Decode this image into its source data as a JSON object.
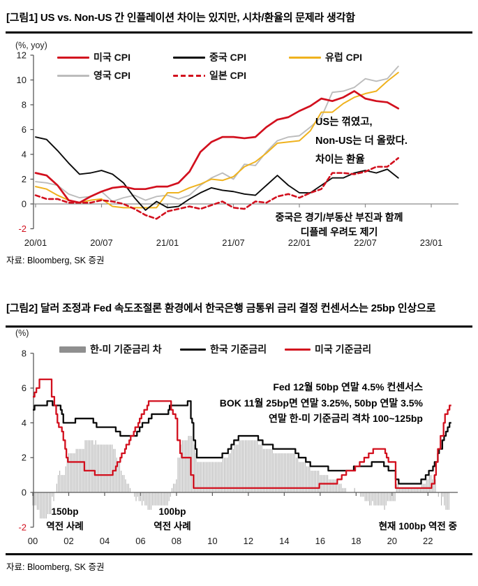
{
  "figure1": {
    "title": "[그림1] US vs. Non-US 간 인플레이션 차이는 있지만, 시차/환율의 문제라 생각함",
    "unit_label": "(%, yoy)",
    "source": "자료: Bloomberg, SK 증권"
  },
  "figure2": {
    "title": "[그림2] 달러 조정과 Fed 속도조절론 환경에서 한국은행 금통위 금리 결정 컨센서스는 25bp 인상으로",
    "unit_label": "(%)",
    "source": "자료: Bloomberg, SK 증권"
  },
  "colors": {
    "red": "#d2101e",
    "yellow": "#efb21e",
    "gray_line": "#bcbcbc",
    "black": "#0a0a0a",
    "bar_gray": "#b3b3b3",
    "legend_bar_gray": "#8f8f8f",
    "negative_tick": "#d2101e",
    "axis": "#4d4d4d",
    "zero_line": "#8c8c8c"
  },
  "chart_data": [
    {
      "type": "line",
      "unit": "%, yoy",
      "x_description": "monthly, index 0 = 2020/01, last point = 2022/10",
      "x_tick_positions": [
        0,
        6,
        12,
        18,
        24,
        30,
        36
      ],
      "x_tick_labels": [
        "20/01",
        "20/07",
        "21/01",
        "21/07",
        "22/01",
        "22/07",
        "23/01"
      ],
      "ylim": [
        -2,
        12
      ],
      "y_ticks": [
        -2,
        0,
        2,
        4,
        6,
        8,
        10,
        12
      ],
      "grid": false,
      "legend_position": "top-inside",
      "series": [
        {
          "key": "uk",
          "name": "영국 CPI",
          "color": "#bcbcbc",
          "width": 1.9,
          "values": [
            1.8,
            1.7,
            1.5,
            0.8,
            0.5,
            0.6,
            1.0,
            0.2,
            0.5,
            0.7,
            0.3,
            0.6,
            0.7,
            0.4,
            0.7,
            1.5,
            2.1,
            2.5,
            2.0,
            3.2,
            3.1,
            4.2,
            5.1,
            5.4,
            5.5,
            6.2,
            7.0,
            9.0,
            9.1,
            9.4,
            10.1,
            9.9,
            10.1,
            11.1
          ]
        },
        {
          "key": "europe",
          "name": "유럽 CPI",
          "color": "#efb21e",
          "width": 2.0,
          "values": [
            1.4,
            1.2,
            0.7,
            0.3,
            0.1,
            0.3,
            0.4,
            -0.2,
            -0.3,
            -0.3,
            -0.3,
            -0.3,
            0.9,
            0.9,
            1.3,
            1.6,
            2.0,
            1.9,
            2.2,
            3.0,
            3.4,
            4.1,
            4.9,
            5.0,
            5.1,
            5.9,
            7.4,
            7.4,
            8.1,
            8.6,
            8.9,
            9.1,
            9.9,
            10.6
          ]
        },
        {
          "key": "china",
          "name": "중국 CPI",
          "color": "#0a0a0a",
          "width": 1.9,
          "values": [
            5.4,
            5.2,
            4.3,
            3.3,
            2.4,
            2.5,
            2.7,
            2.4,
            1.7,
            0.5,
            -0.5,
            0.2,
            -0.3,
            -0.2,
            0.4,
            0.9,
            1.3,
            1.1,
            1.0,
            0.8,
            0.7,
            1.5,
            2.3,
            1.5,
            0.9,
            0.9,
            1.5,
            2.1,
            2.1,
            2.5,
            2.7,
            2.5,
            2.8,
            2.1
          ]
        },
        {
          "key": "japan",
          "name": "일본 CPI",
          "color": "#d2101e",
          "width": 2.6,
          "dash": "6,4",
          "values": [
            0.7,
            0.4,
            0.4,
            0.1,
            0.1,
            0.1,
            0.3,
            0.2,
            0.0,
            -0.4,
            -0.9,
            -1.2,
            -0.6,
            -0.4,
            -0.2,
            -0.4,
            -0.1,
            0.2,
            -0.3,
            -0.4,
            0.2,
            0.1,
            0.6,
            0.8,
            0.5,
            0.9,
            1.2,
            2.5,
            2.5,
            2.4,
            2.6,
            3.0,
            3.0,
            3.7
          ]
        },
        {
          "key": "us",
          "name": "미국 CPI",
          "color": "#d2101e",
          "width": 2.7,
          "values": [
            2.5,
            2.3,
            1.5,
            0.3,
            0.1,
            0.6,
            1.0,
            1.3,
            1.4,
            1.2,
            1.2,
            1.4,
            1.4,
            1.7,
            2.6,
            4.2,
            5.0,
            5.4,
            5.4,
            5.3,
            5.4,
            6.2,
            6.8,
            7.0,
            7.5,
            7.9,
            8.5,
            8.3,
            8.6,
            9.1,
            8.5,
            8.3,
            8.2,
            7.7
          ]
        }
      ],
      "annotations": [
        {
          "lines": [
            "US는 꺾였고,",
            "Non-US는 더 올랐다.",
            "차이는 환율"
          ]
        },
        {
          "lines": [
            "중국은 경기/부동산 부진과 함께",
            "디플레 우려도 제기"
          ]
        }
      ]
    },
    {
      "type": "bar+step-line",
      "unit": "%",
      "x_description": "years 2000 - 2023, policy rates as step lines, bars = Korea minus US monthly",
      "x_ticks": [
        2000,
        2002,
        2004,
        2006,
        2008,
        2010,
        2012,
        2014,
        2016,
        2018,
        2020,
        2022
      ],
      "x_tick_labels": [
        "00",
        "02",
        "04",
        "06",
        "08",
        "10",
        "12",
        "14",
        "16",
        "18",
        "20",
        "22"
      ],
      "x_end": 2023.3,
      "ylim": [
        -2,
        8
      ],
      "y_ticks": [
        -2,
        0,
        2,
        4,
        6,
        8
      ],
      "grid": false,
      "legend_position": "top-inside",
      "bars": {
        "name": "한-미 기준금리 차",
        "color": "#b3b3b3",
        "legend_color": "#8f8f8f",
        "legend_swatch": "bar",
        "derived": "korea_minus_us_monthly"
      },
      "series": [
        {
          "key": "korea",
          "name": "한국 기준금리",
          "color": "#0a0a0a",
          "width": 2.3,
          "step": true,
          "changes": [
            [
              2000.0,
              4.75
            ],
            [
              2000.1,
              5.0
            ],
            [
              2000.8,
              5.25
            ],
            [
              2001.1,
              5.0
            ],
            [
              2001.55,
              4.75
            ],
            [
              2001.62,
              4.5
            ],
            [
              2001.7,
              4.0
            ],
            [
              2002.37,
              4.25
            ],
            [
              2003.37,
              4.0
            ],
            [
              2003.55,
              3.75
            ],
            [
              2004.62,
              3.5
            ],
            [
              2004.87,
              3.25
            ],
            [
              2005.8,
              3.5
            ],
            [
              2005.95,
              3.75
            ],
            [
              2006.1,
              4.0
            ],
            [
              2006.45,
              4.25
            ],
            [
              2006.62,
              4.5
            ],
            [
              2007.55,
              4.75
            ],
            [
              2007.62,
              5.0
            ],
            [
              2008.62,
              5.25
            ],
            [
              2008.8,
              4.25
            ],
            [
              2008.87,
              4.0
            ],
            [
              2008.95,
              3.0
            ],
            [
              2009.05,
              2.5
            ],
            [
              2009.13,
              2.0
            ],
            [
              2010.55,
              2.25
            ],
            [
              2010.87,
              2.5
            ],
            [
              2011.05,
              2.75
            ],
            [
              2011.2,
              3.0
            ],
            [
              2011.45,
              3.25
            ],
            [
              2012.55,
              3.0
            ],
            [
              2012.8,
              2.75
            ],
            [
              2013.37,
              2.5
            ],
            [
              2014.62,
              2.25
            ],
            [
              2014.8,
              2.0
            ],
            [
              2015.2,
              1.75
            ],
            [
              2015.45,
              1.5
            ],
            [
              2016.45,
              1.25
            ],
            [
              2017.87,
              1.5
            ],
            [
              2018.87,
              1.75
            ],
            [
              2019.55,
              1.5
            ],
            [
              2019.8,
              1.25
            ],
            [
              2020.2,
              0.75
            ],
            [
              2020.37,
              0.5
            ],
            [
              2021.62,
              0.75
            ],
            [
              2021.87,
              1.0
            ],
            [
              2022.05,
              1.25
            ],
            [
              2022.28,
              1.5
            ],
            [
              2022.37,
              1.75
            ],
            [
              2022.55,
              2.25
            ],
            [
              2022.62,
              2.5
            ],
            [
              2022.8,
              3.0
            ],
            [
              2022.9,
              3.25
            ],
            [
              2023.0,
              3.5
            ],
            [
              2023.1,
              3.75
            ],
            [
              2023.2,
              4.0
            ]
          ]
        },
        {
          "key": "us",
          "name": "미국 기준금리",
          "color": "#d2101e",
          "width": 2.3,
          "step": true,
          "changes": [
            [
              2000.0,
              5.5
            ],
            [
              2000.1,
              5.75
            ],
            [
              2000.2,
              6.0
            ],
            [
              2000.37,
              6.5
            ],
            [
              2001.05,
              5.5
            ],
            [
              2001.2,
              5.0
            ],
            [
              2001.3,
              4.5
            ],
            [
              2001.37,
              4.0
            ],
            [
              2001.45,
              3.75
            ],
            [
              2001.62,
              3.5
            ],
            [
              2001.7,
              3.0
            ],
            [
              2001.8,
              2.5
            ],
            [
              2001.87,
              2.0
            ],
            [
              2001.95,
              1.75
            ],
            [
              2002.87,
              1.25
            ],
            [
              2003.45,
              1.0
            ],
            [
              2004.45,
              1.25
            ],
            [
              2004.62,
              1.5
            ],
            [
              2004.7,
              1.75
            ],
            [
              2004.87,
              2.0
            ],
            [
              2004.95,
              2.25
            ],
            [
              2005.13,
              2.5
            ],
            [
              2005.2,
              2.75
            ],
            [
              2005.37,
              3.0
            ],
            [
              2005.45,
              3.25
            ],
            [
              2005.62,
              3.5
            ],
            [
              2005.7,
              3.75
            ],
            [
              2005.87,
              4.0
            ],
            [
              2005.95,
              4.25
            ],
            [
              2006.05,
              4.5
            ],
            [
              2006.2,
              4.75
            ],
            [
              2006.37,
              5.0
            ],
            [
              2006.45,
              5.25
            ],
            [
              2007.7,
              4.75
            ],
            [
              2007.8,
              4.5
            ],
            [
              2007.95,
              4.25
            ],
            [
              2008.05,
              3.0
            ],
            [
              2008.2,
              2.25
            ],
            [
              2008.3,
              2.0
            ],
            [
              2008.8,
              1.0
            ],
            [
              2008.95,
              0.25
            ],
            [
              2015.95,
              0.5
            ],
            [
              2016.95,
              0.75
            ],
            [
              2017.2,
              1.0
            ],
            [
              2017.45,
              1.25
            ],
            [
              2017.95,
              1.5
            ],
            [
              2018.2,
              1.75
            ],
            [
              2018.45,
              2.0
            ],
            [
              2018.7,
              2.25
            ],
            [
              2018.95,
              2.5
            ],
            [
              2019.62,
              2.25
            ],
            [
              2019.7,
              2.0
            ],
            [
              2019.8,
              1.75
            ],
            [
              2020.2,
              0.25
            ],
            [
              2022.2,
              0.5
            ],
            [
              2022.37,
              1.0
            ],
            [
              2022.45,
              1.75
            ],
            [
              2022.55,
              2.5
            ],
            [
              2022.7,
              3.25
            ],
            [
              2022.87,
              4.0
            ],
            [
              2022.95,
              4.5
            ],
            [
              2023.1,
              4.75
            ],
            [
              2023.2,
              5.0
            ]
          ]
        }
      ],
      "annotations": [
        {
          "lines": [
            "Fed 12월 50bp 연말 4.5% 컨센서스",
            "BOK 11월 25bp면 연말 3.25%, 50bp 연말 3.5%",
            "연말 한-미 기준금리 격차 100~125bp"
          ]
        },
        {
          "lines": [
            "150bp",
            "역전 사례"
          ]
        },
        {
          "lines": [
            "100bp",
            "역전 사례"
          ]
        },
        {
          "lines": [
            "현재 100bp 역전 중"
          ]
        }
      ]
    }
  ]
}
